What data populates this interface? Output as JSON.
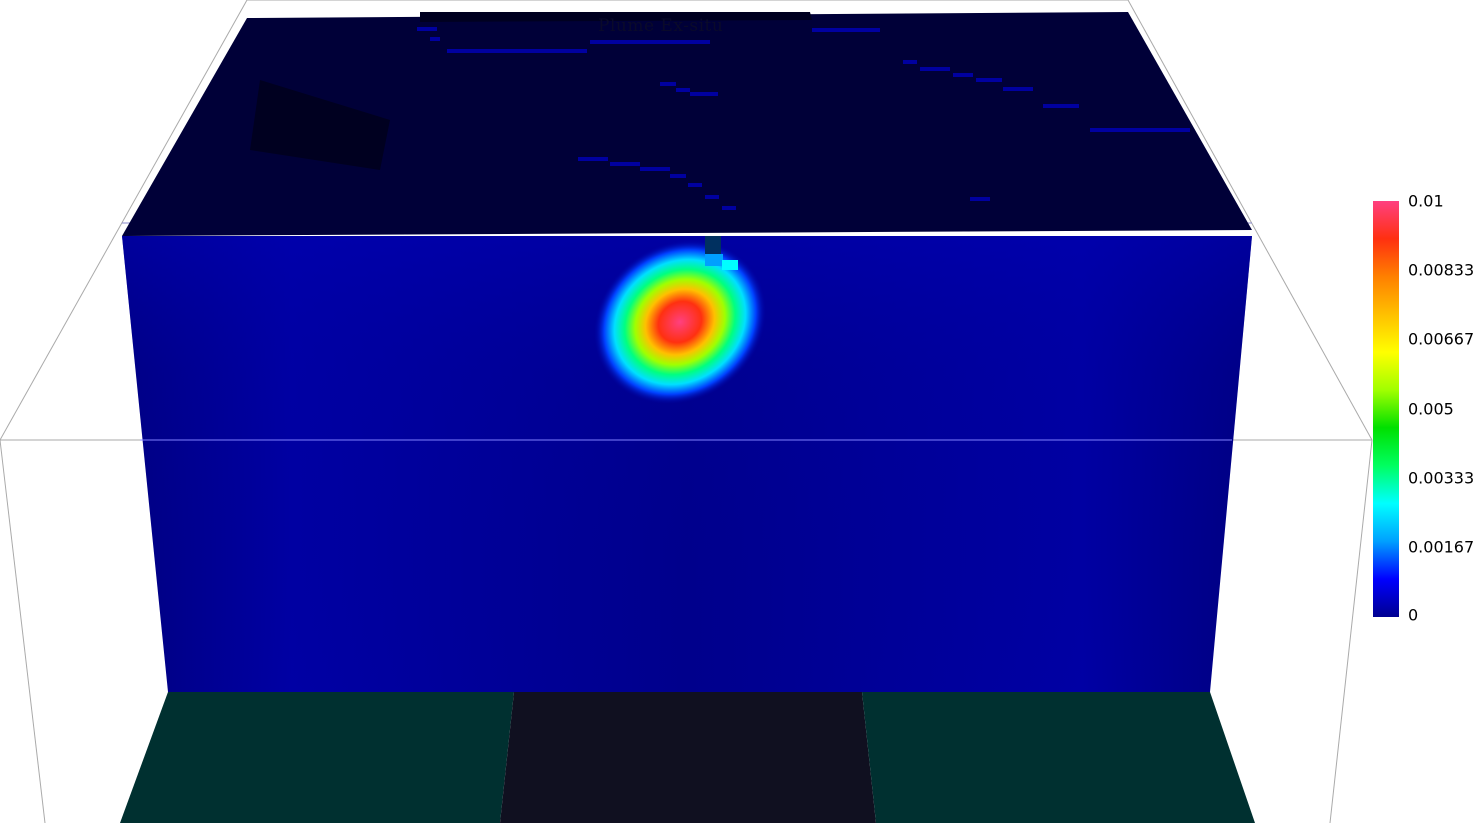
{
  "title": "Plume Ex-situ",
  "colorbar": {
    "ticks": [
      "0.01",
      "0.00833",
      "0.00667",
      "0.005",
      "0.00333",
      "0.00167",
      "0"
    ],
    "min": 0,
    "max": 0.01,
    "stops": [
      "#000090",
      "#0000ff",
      "#00a0ff",
      "#00ffff",
      "#00ff60",
      "#00e000",
      "#a0ff00",
      "#ffff00",
      "#ffc000",
      "#ff8000",
      "#ff3010",
      "#ff4080"
    ]
  },
  "colors": {
    "block_side": "#00008a",
    "block_top": "#000038",
    "floor_left": "#003030",
    "floor_center": "#101020",
    "floor_right": "#003030",
    "wireframe": "#aaaaaa"
  }
}
